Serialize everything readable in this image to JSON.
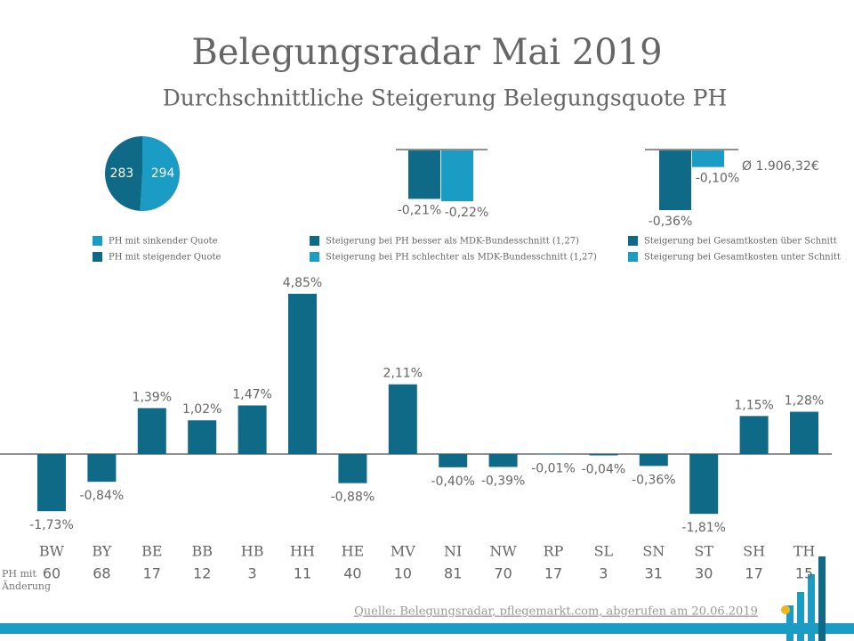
{
  "title": "Belegungsradar Mai 2019",
  "subtitle": "Durchschnittliche Steigerung Belegungsquote PH",
  "source": "Quelle: Belegungsradar, pflegemarkt.com, abgerufen am 20.06.2019",
  "chart_data": [
    {
      "type": "pie",
      "categories": [
        "PH mit sinkender Quote",
        "PH mit steigender Quote"
      ],
      "values": [
        294,
        283
      ],
      "colors": [
        "#1a9cc4",
        "#0f6a87"
      ]
    },
    {
      "type": "bar",
      "series": [
        {
          "name": "Steigerung bei PH besser als MDK-Bundesschnitt (1,27)",
          "color": "#0f6a87",
          "values": [
            -0.21
          ],
          "value_labels": [
            "-0,21%"
          ]
        },
        {
          "name": "Steigerung bei PH schlechter als MDK-Bundesschnitt (1,27)",
          "color": "#1a9cc4",
          "values": [
            -0.22
          ],
          "value_labels": [
            "-0,22%"
          ]
        }
      ]
    },
    {
      "type": "bar",
      "annotation": "Ø 1.906,32€",
      "series": [
        {
          "name": "Steigerung bei Gesamtkosten über Schnitt",
          "color": "#0f6a87",
          "values": [
            -0.36
          ],
          "value_labels": [
            "-0,36%"
          ]
        },
        {
          "name": "Steigerung bei Gesamtkosten unter Schnitt",
          "color": "#1a9cc4",
          "values": [
            -0.1
          ],
          "value_labels": [
            "-0,10%"
          ]
        }
      ]
    },
    {
      "type": "bar",
      "color": "#0f6a87",
      "categories": [
        "BW",
        "BY",
        "BE",
        "BB",
        "HB",
        "HH",
        "HE",
        "MV",
        "NI",
        "NW",
        "RP",
        "SL",
        "SN",
        "ST",
        "SH",
        "TH"
      ],
      "values": [
        -1.73,
        -0.84,
        1.39,
        1.02,
        1.47,
        4.85,
        -0.88,
        2.11,
        -0.4,
        -0.39,
        -0.01,
        -0.04,
        -0.36,
        -1.81,
        1.15,
        1.28
      ],
      "value_labels": [
        "-1,73%",
        "-0,84%",
        "1,39%",
        "1,02%",
        "1,47%",
        "4,85%",
        "-0,88%",
        "2,11%",
        "-0,40%",
        "-0,39%",
        "-0,01%",
        "-0,04%",
        "-0,36%",
        "-1,81%",
        "1,15%",
        "1,28%"
      ],
      "row_label": "PH mit Änderung",
      "counts": [
        60,
        68,
        17,
        12,
        3,
        11,
        40,
        10,
        81,
        70,
        17,
        3,
        31,
        30,
        17,
        15
      ]
    }
  ]
}
